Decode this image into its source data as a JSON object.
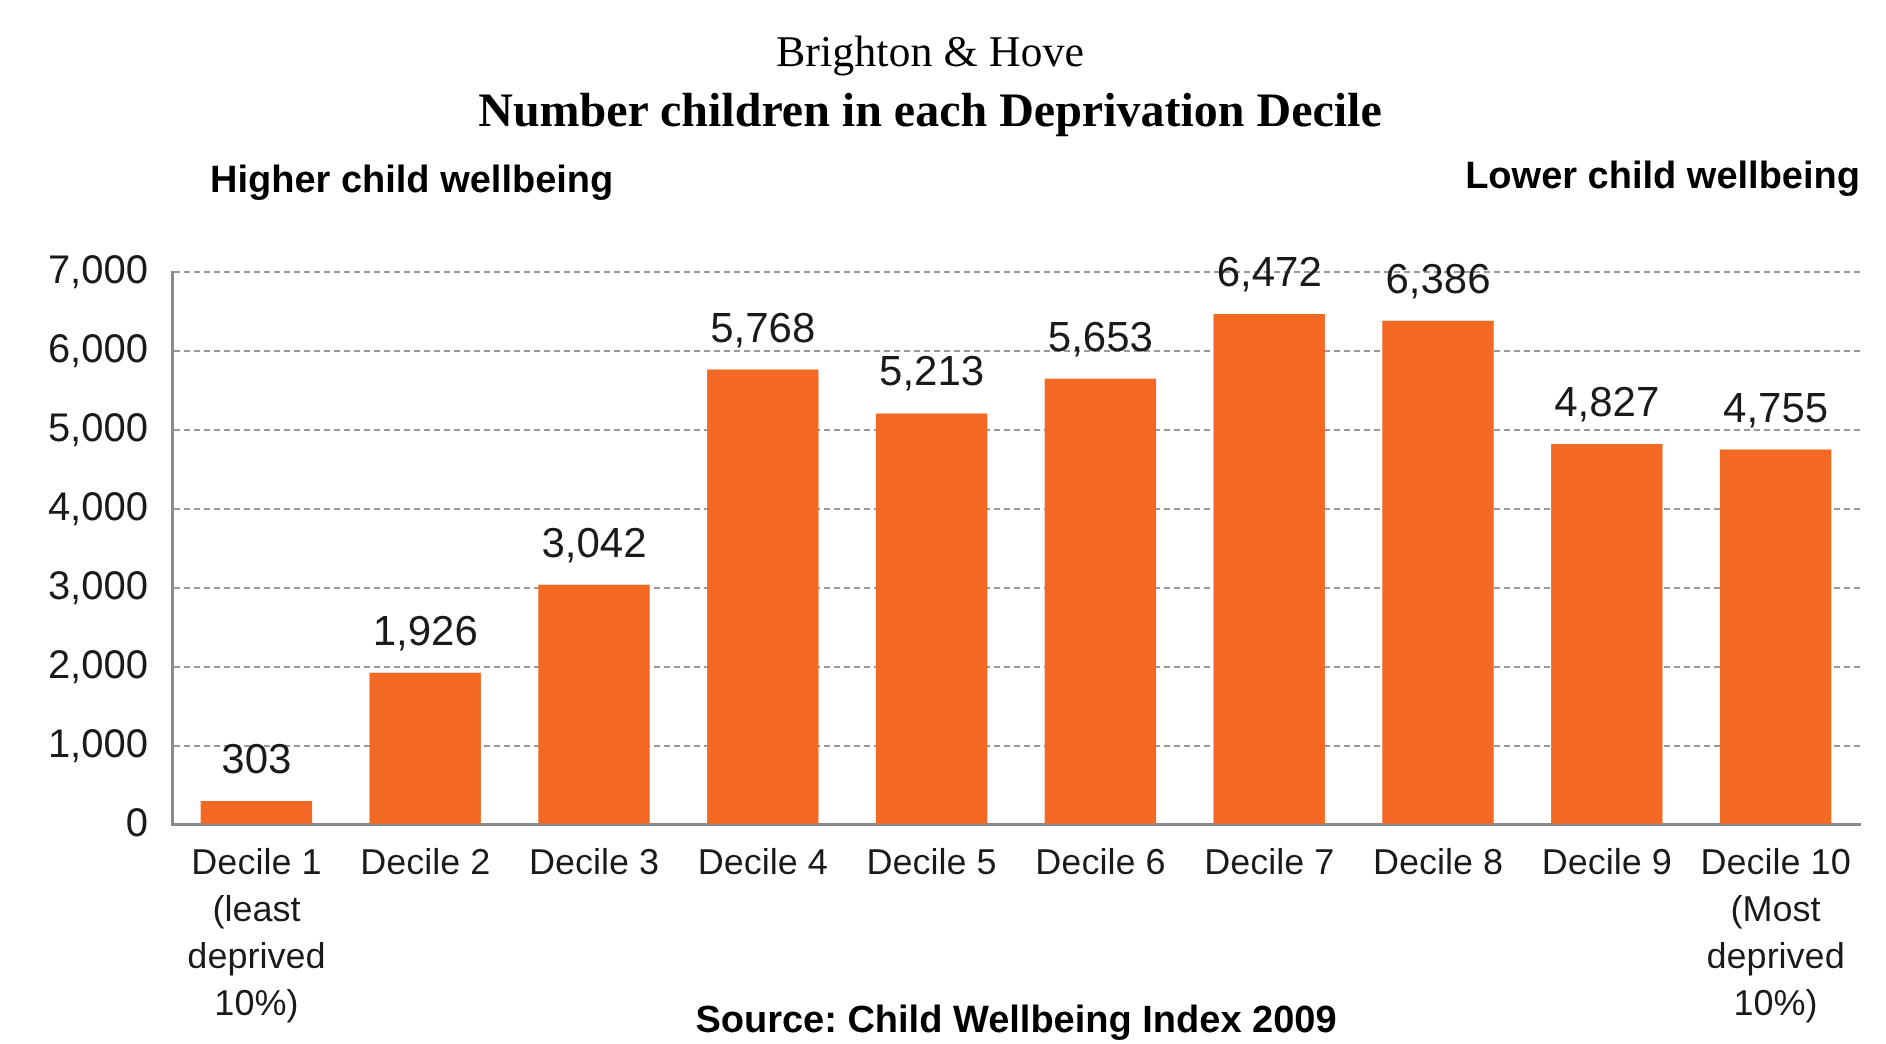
{
  "chart_data": {
    "type": "bar",
    "title": "Brighton & Hove",
    "subtitle": "Number children in each Deprivation Decile",
    "annotations": [
      "Higher child wellbeing",
      "Lower child wellbeing",
      "Source: Child Wellbeing Index 2009"
    ],
    "categories": [
      "Decile 1 (least deprived 10%)",
      "Decile 2",
      "Decile 3",
      "Decile 4",
      "Decile 5",
      "Decile 6",
      "Decile 7",
      "Decile 8",
      "Decile 9",
      "Decile 10 (Most deprived 10%)"
    ],
    "values": [
      303,
      1926,
      3042,
      5768,
      5213,
      5653,
      6472,
      6386,
      4827,
      4755
    ],
    "value_labels": [
      "303",
      "1,926",
      "3,042",
      "5,768",
      "5,213",
      "5,653",
      "6,472",
      "6,386",
      "4,827",
      "4,755"
    ],
    "color": "#f36823",
    "ylim": [
      0,
      7000
    ],
    "yticks": [
      0,
      {
        "value": 1000,
        "label": "1,000"
      },
      {
        "value": 2000,
        "label": "2,000"
      },
      {
        "value": 3000,
        "label": "3,000"
      },
      {
        "value": 4000,
        "label": "4,000"
      },
      {
        "value": 5000,
        "label": "5,000"
      },
      {
        "value": 6000,
        "label": "6,000"
      },
      {
        "value": 7000,
        "label": "7,000"
      }
    ],
    "grid": "y"
  }
}
